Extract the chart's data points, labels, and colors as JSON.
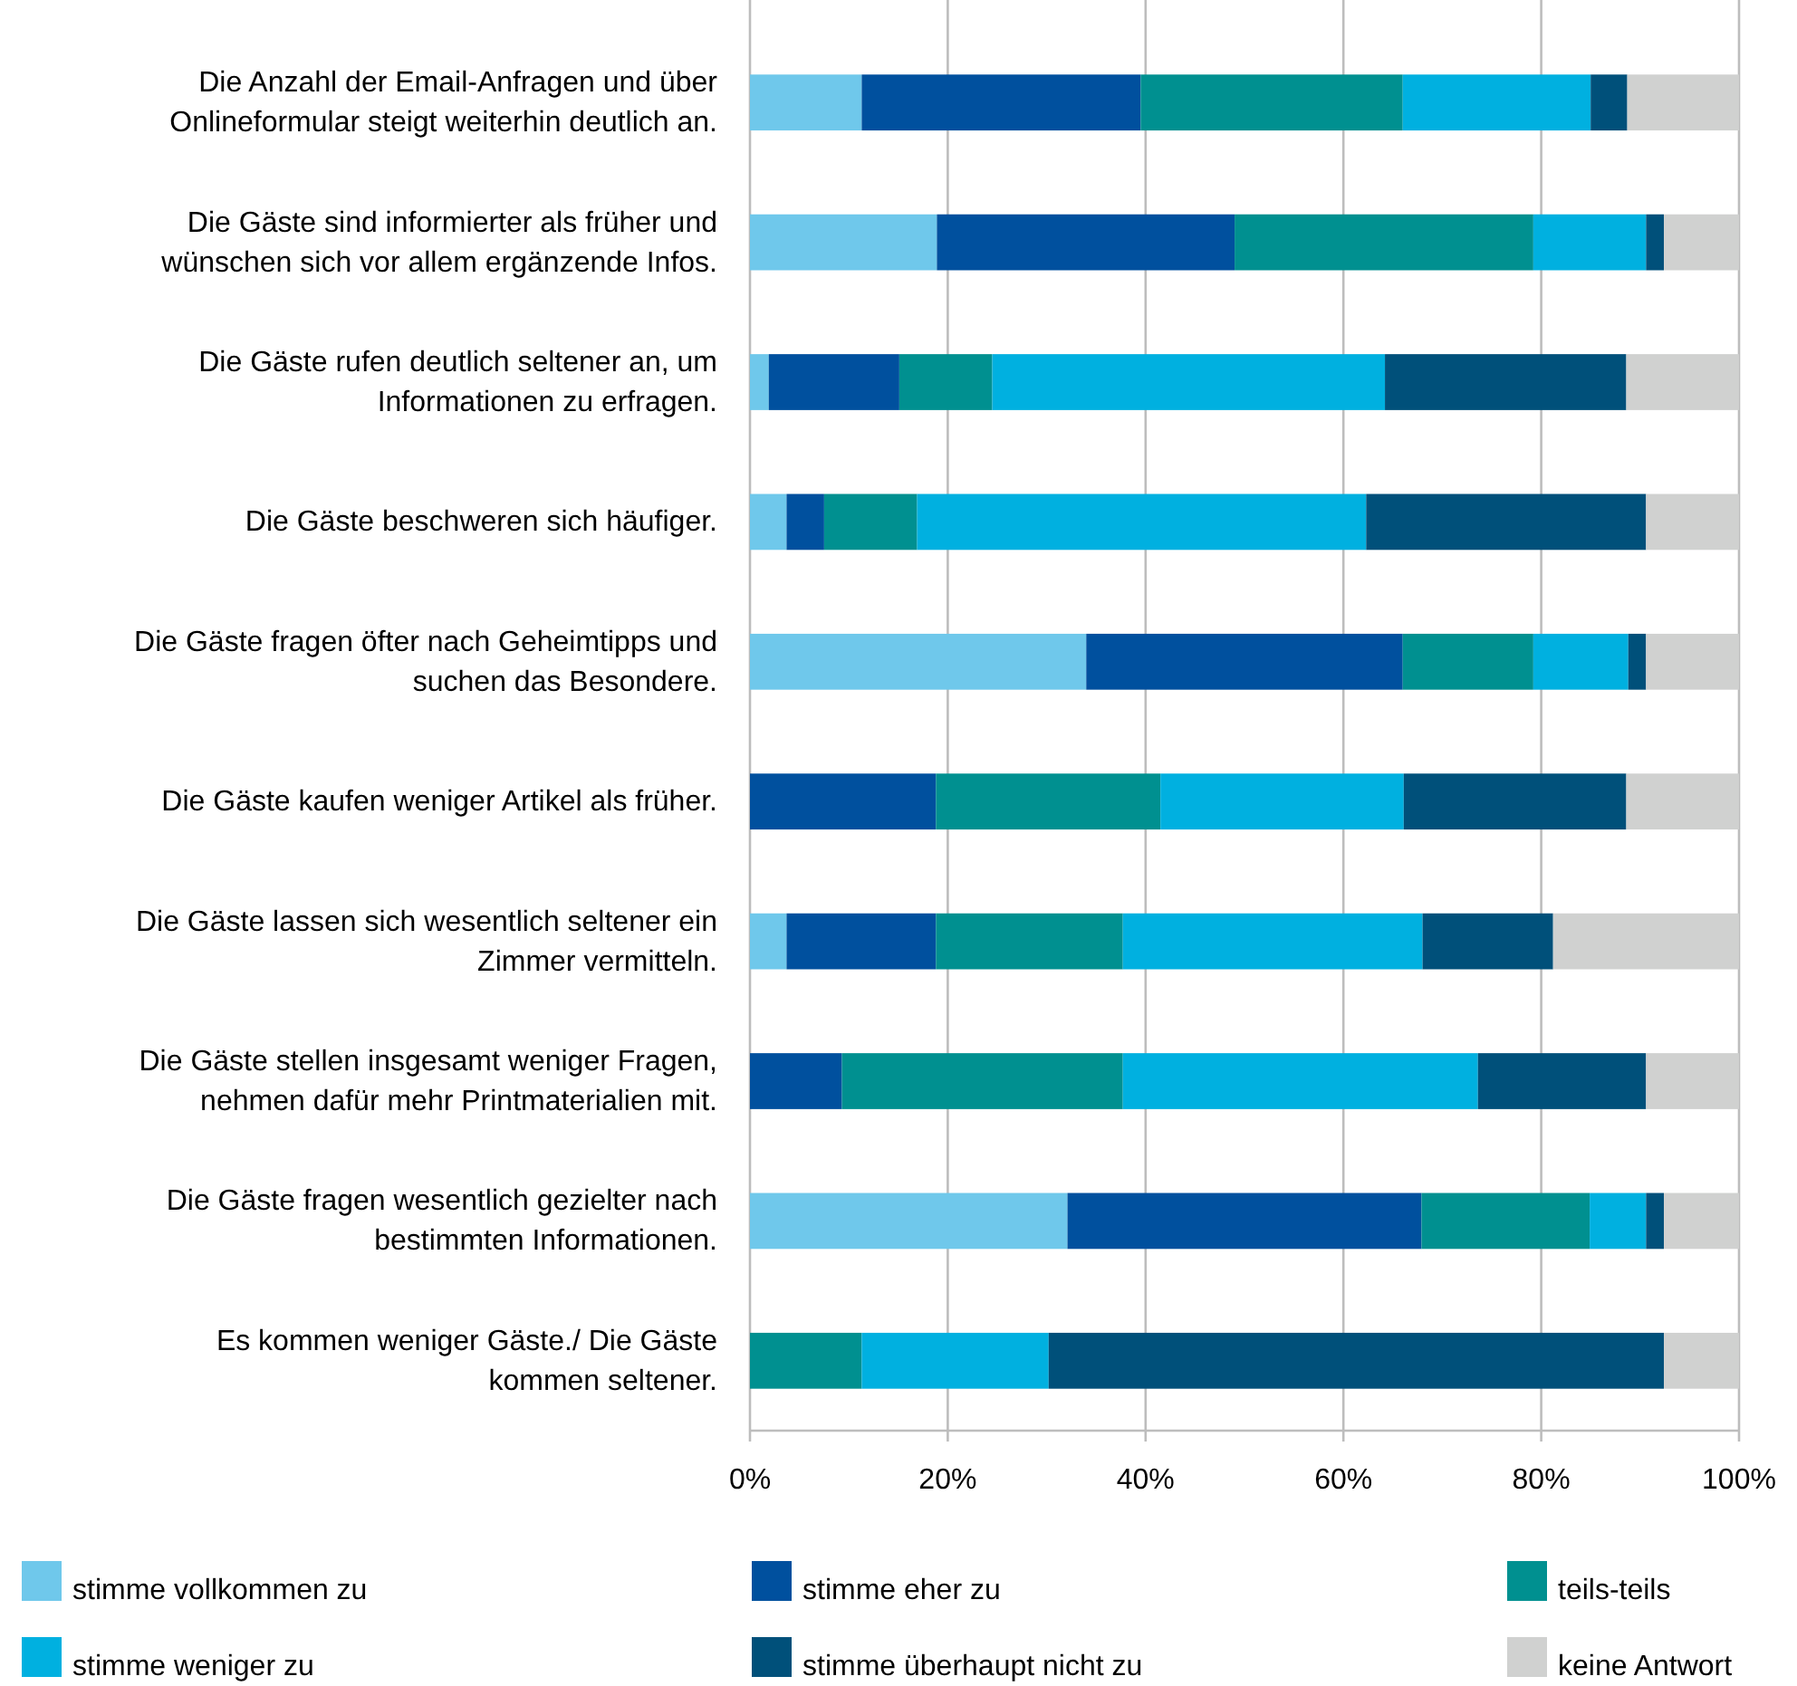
{
  "chart_data": {
    "type": "bar",
    "orientation": "horizontal",
    "stacked": true,
    "categories": [
      "Die Anzahl der Email-Anfragen und über Onlineformular steigt weiterhin deutlich an.",
      "Die Gäste sind informierter als früher und wünschen sich vor allem ergänzende Infos.",
      "Die Gäste rufen deutlich seltener an, um Informationen zu erfragen.",
      "Die Gäste beschweren sich häufiger.",
      "Die Gäste fragen öfter nach Geheimtipps und suchen das Besondere.",
      "Die Gäste kaufen weniger Artikel als früher.",
      "Die Gäste lassen sich wesentlich seltener ein Zimmer vermitteln.",
      "Die Gäste stellen insgesamt weniger Fragen, nehmen dafür mehr Printmaterialien mit.",
      "Die Gäste fragen wesentlich gezielter nach bestimmten Informationen.",
      "Es kommen weniger Gäste./ Die Gäste kommen seltener."
    ],
    "series": [
      {
        "name": "stimme vollkommen zu",
        "color": "#6fc8eb",
        "values": [
          11.3,
          18.9,
          1.9,
          3.7,
          34,
          0,
          3.7,
          0,
          32.1,
          0
        ]
      },
      {
        "name": "stimme eher zu",
        "color": "#00509e",
        "values": [
          28.2,
          30.1,
          13.2,
          3.8,
          32,
          18.8,
          15.1,
          9.3,
          35.8,
          0
        ]
      },
      {
        "name": "teils-teils",
        "color": "#009090",
        "values": [
          26.5,
          30.2,
          9.4,
          9.4,
          13.2,
          22.7,
          18.9,
          28.4,
          17,
          11.3
        ]
      },
      {
        "name": "stimme weniger zu",
        "color": "#00b0e0",
        "values": [
          19,
          11.4,
          39.7,
          45.4,
          9.6,
          24.6,
          30.3,
          35.9,
          5.7,
          18.9
        ]
      },
      {
        "name": "stimme überhaupt nicht zu",
        "color": "#00507a",
        "values": [
          3.7,
          1.8,
          24.4,
          28.3,
          1.8,
          22.5,
          13.2,
          17,
          1.8,
          62.2
        ]
      },
      {
        "name": "keine Antwort",
        "color": "#d0d1d0",
        "values": [
          11.3,
          7.6,
          11.4,
          9.4,
          9.4,
          11.4,
          18.8,
          9.4,
          7.6,
          7.6
        ]
      }
    ],
    "xlim": [
      0,
      100
    ],
    "xticks": [
      {
        "value": 0,
        "label": "0%"
      },
      {
        "value": 20,
        "label": "20%"
      },
      {
        "value": 40,
        "label": "40%"
      },
      {
        "value": 60,
        "label": "60%"
      },
      {
        "value": 80,
        "label": "80%"
      },
      {
        "value": 100,
        "label": "100%"
      }
    ],
    "grid": "x",
    "legend": "bottom"
  }
}
